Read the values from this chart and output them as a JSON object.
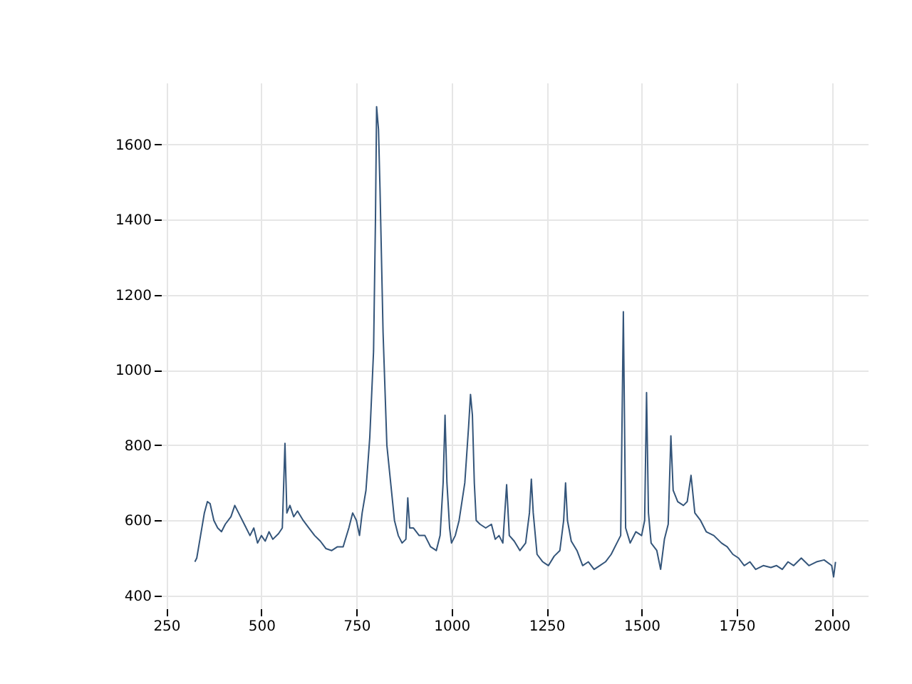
{
  "chart_data": {
    "type": "line",
    "grid": true,
    "xlim": [
      236,
      2095
    ],
    "ylim": [
      366,
      1764
    ],
    "xticks": [
      250,
      500,
      750,
      1000,
      1250,
      1500,
      1750,
      2000
    ],
    "yticks": [
      400,
      600,
      800,
      1000,
      1200,
      1400,
      1600
    ],
    "x": [
      325,
      330,
      340,
      350,
      358,
      365,
      375,
      385,
      395,
      405,
      420,
      430,
      440,
      455,
      470,
      480,
      490,
      500,
      510,
      520,
      530,
      545,
      555,
      562,
      567,
      575,
      585,
      595,
      610,
      625,
      640,
      655,
      670,
      685,
      700,
      715,
      730,
      740,
      750,
      758,
      765,
      775,
      785,
      795,
      800,
      803,
      808,
      812,
      820,
      830,
      840,
      850,
      860,
      870,
      880,
      885,
      890,
      900,
      915,
      930,
      945,
      960,
      970,
      978,
      983,
      988,
      995,
      1000,
      1010,
      1020,
      1035,
      1045,
      1050,
      1055,
      1060,
      1065,
      1075,
      1090,
      1105,
      1115,
      1125,
      1135,
      1145,
      1152,
      1165,
      1180,
      1195,
      1205,
      1210,
      1215,
      1225,
      1240,
      1255,
      1270,
      1285,
      1295,
      1300,
      1305,
      1315,
      1330,
      1345,
      1360,
      1375,
      1390,
      1405,
      1420,
      1435,
      1445,
      1452,
      1458,
      1470,
      1485,
      1500,
      1508,
      1513,
      1518,
      1525,
      1540,
      1550,
      1560,
      1570,
      1577,
      1583,
      1595,
      1610,
      1620,
      1630,
      1640,
      1655,
      1670,
      1690,
      1710,
      1725,
      1740,
      1755,
      1770,
      1785,
      1800,
      1820,
      1840,
      1855,
      1870,
      1885,
      1900,
      1920,
      1940,
      1960,
      1980,
      2000,
      2005,
      2010
    ],
    "series": [
      {
        "color": "#34557a",
        "values": [
          490,
          500,
          560,
          620,
          650,
          645,
          600,
          580,
          570,
          590,
          610,
          640,
          620,
          590,
          560,
          580,
          540,
          560,
          545,
          570,
          550,
          565,
          580,
          805,
          620,
          640,
          610,
          625,
          600,
          580,
          560,
          545,
          525,
          520,
          530,
          530,
          580,
          620,
          600,
          560,
          620,
          680,
          820,
          1050,
          1400,
          1700,
          1640,
          1480,
          1100,
          800,
          700,
          600,
          560,
          540,
          550,
          660,
          580,
          580,
          560,
          560,
          530,
          520,
          560,
          700,
          880,
          700,
          580,
          540,
          560,
          600,
          700,
          850,
          935,
          880,
          700,
          600,
          590,
          580,
          590,
          550,
          560,
          540,
          695,
          560,
          545,
          520,
          540,
          620,
          710,
          620,
          510,
          490,
          480,
          505,
          520,
          600,
          700,
          600,
          545,
          520,
          480,
          490,
          470,
          480,
          490,
          510,
          540,
          560,
          1155,
          580,
          540,
          570,
          560,
          600,
          940,
          620,
          540,
          520,
          470,
          550,
          590,
          825,
          680,
          650,
          640,
          650,
          720,
          620,
          600,
          570,
          560,
          540,
          530,
          510,
          500,
          480,
          490,
          470,
          480,
          475,
          480,
          470,
          490,
          480,
          500,
          480,
          490,
          495,
          480,
          450,
          490
        ]
      }
    ]
  }
}
